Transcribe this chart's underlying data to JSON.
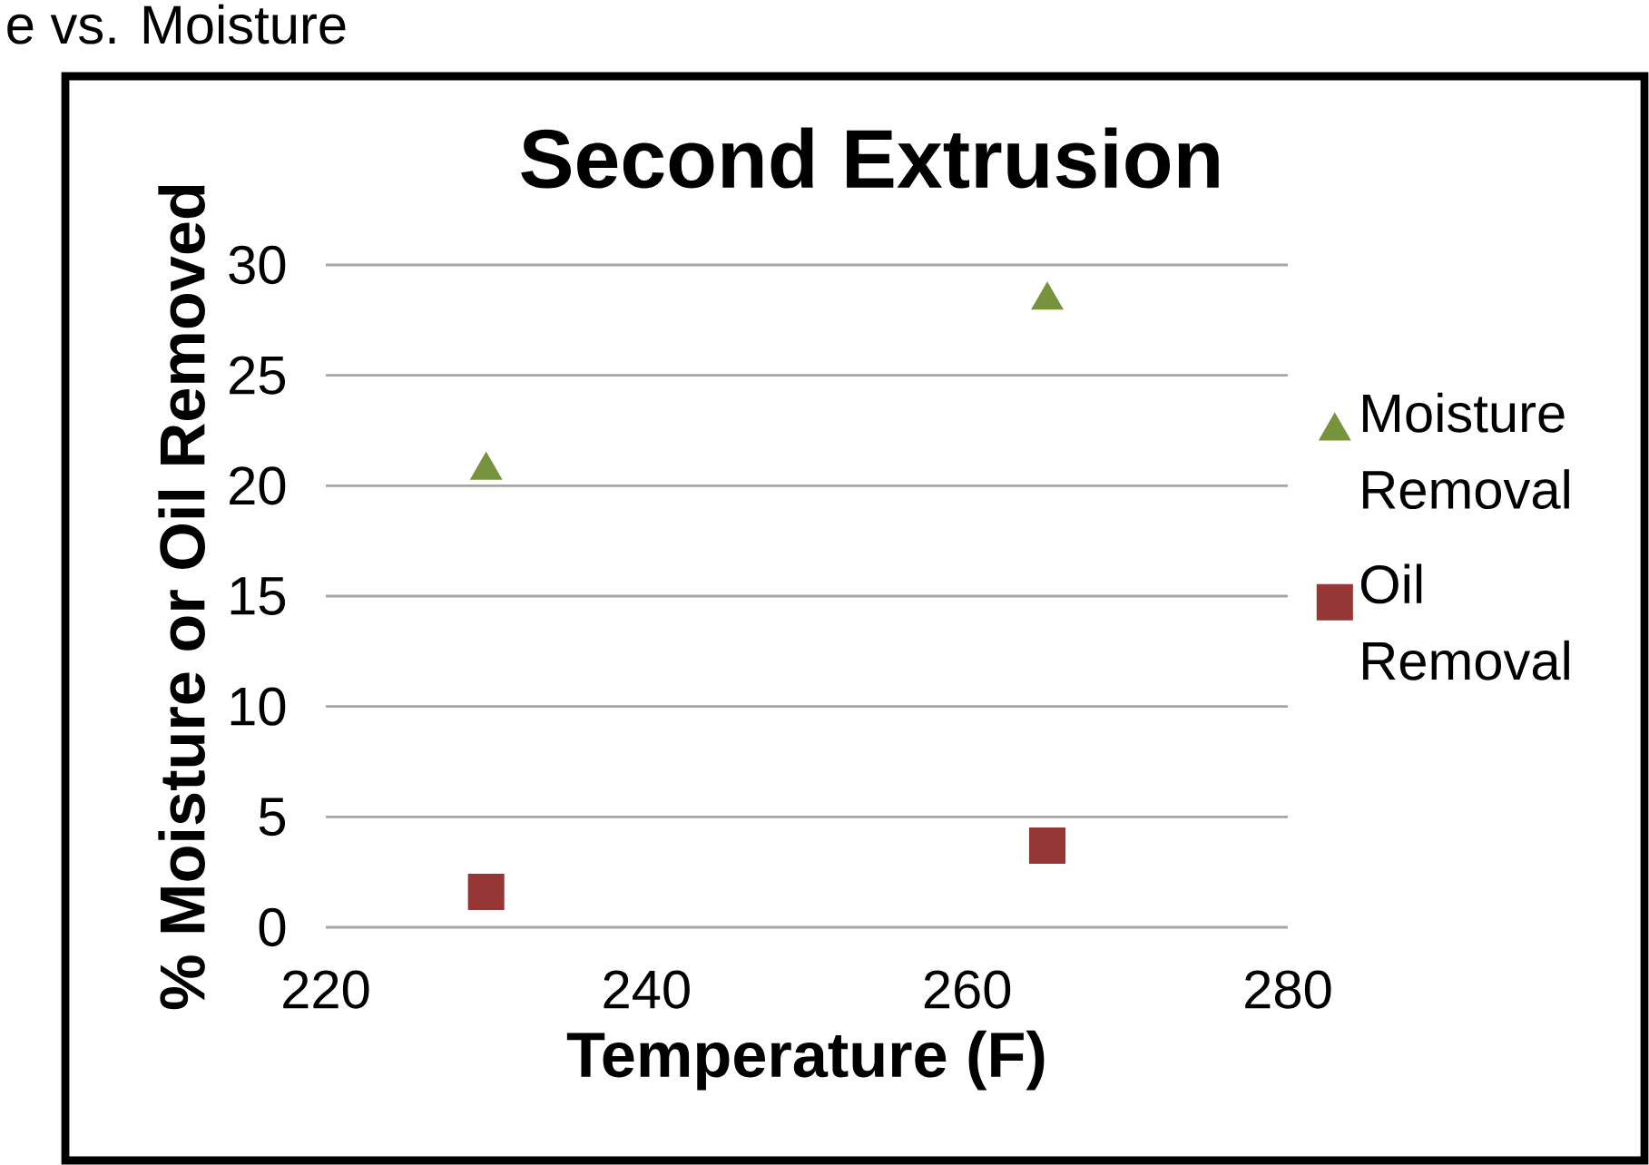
{
  "chart_data": {
    "type": "scatter",
    "title": "Second Extrusion",
    "xlabel": "Temperature (F)",
    "ylabel": "% Moisture or Oil Removed",
    "annotations": [
      "e vs. Moisture"
    ],
    "x": [
      230,
      265
    ],
    "series": [
      {
        "name": "Moisture Removal",
        "color": "#77933c",
        "marker": "triangle",
        "values": [
          20.7,
          28.4
        ]
      },
      {
        "name": "Oil Removal",
        "color": "#953735",
        "marker": "square",
        "values": [
          1.6,
          3.7
        ]
      }
    ],
    "xlim": [
      220,
      280
    ],
    "xticks": [
      220,
      240,
      260,
      280
    ],
    "ylim": [
      0,
      30
    ],
    "yticks": [
      0,
      5,
      10,
      15,
      20,
      25,
      30
    ],
    "grid": "y",
    "legend": "right"
  }
}
